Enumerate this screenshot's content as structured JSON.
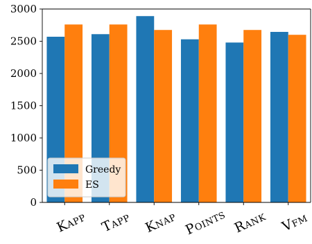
{
  "chart_data": {
    "type": "bar",
    "categories": [
      "Kapp",
      "Tapp",
      "Knap",
      "Points",
      "Rank",
      "Vfm"
    ],
    "series": [
      {
        "name": "Greedy",
        "color": "#1f77b4",
        "values": [
          2570,
          2610,
          2890,
          2530,
          2480,
          2645
        ]
      },
      {
        "name": "ES",
        "color": "#ff7f0e",
        "values": [
          2760,
          2760,
          2675,
          2760,
          2675,
          2600
        ]
      }
    ],
    "ylim": [
      0,
      3000
    ],
    "yticks": [
      0,
      500,
      1000,
      1500,
      2000,
      2500,
      3000
    ],
    "title": "",
    "xlabel": "",
    "ylabel": "",
    "legend": {
      "placement": "lower-left"
    },
    "grid": false
  }
}
